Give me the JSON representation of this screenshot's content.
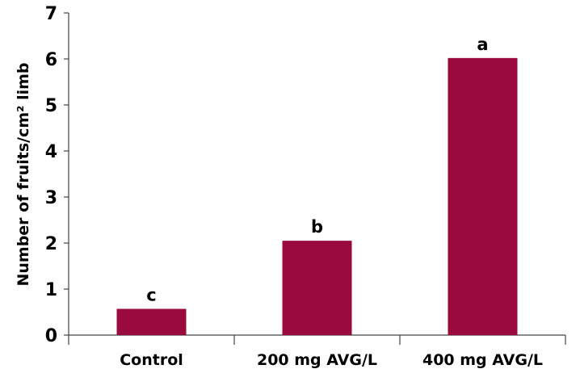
{
  "chart_data": {
    "type": "bar",
    "categories": [
      "Control",
      "200 mg AVG/L",
      "400 mg AVG/L"
    ],
    "values": [
      0.57,
      2.05,
      6.02
    ],
    "data_labels": [
      "c",
      "b",
      "a"
    ],
    "ylabel": "Number of fruits/cm² limb",
    "xlabel": "",
    "title": "",
    "ylim": [
      0,
      7
    ],
    "yticks": [
      0,
      1,
      2,
      3,
      4,
      5,
      6,
      7
    ],
    "bar_color": "#9b0a3c",
    "grid": false,
    "legend": "none"
  }
}
